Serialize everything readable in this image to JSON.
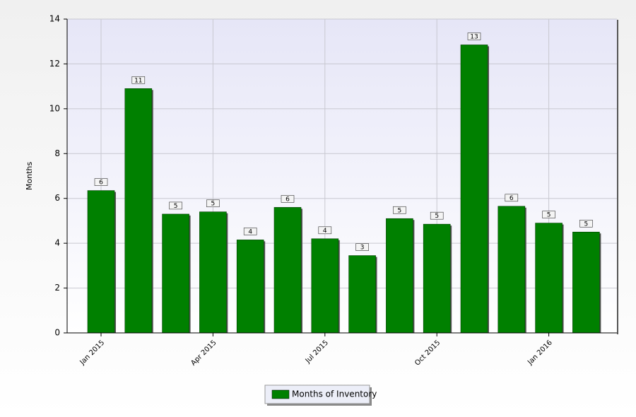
{
  "chart_data": {
    "type": "bar",
    "y_label": "Months",
    "categories": [
      "Jan 2015",
      null,
      null,
      "Apr 2015",
      null,
      null,
      "Jul 2015",
      null,
      null,
      "Oct 2015",
      null,
      null,
      "Jan 2016",
      null
    ],
    "series": [
      {
        "name": "Months of Inventory",
        "color": "#008000",
        "values": [
          6.35,
          10.9,
          5.3,
          5.4,
          4.15,
          5.6,
          4.2,
          3.45,
          5.1,
          4.85,
          12.85,
          5.65,
          4.9,
          4.5
        ],
        "value_labels": [
          "6",
          "11",
          "5",
          "5",
          "4",
          "6",
          "4",
          "3",
          "5",
          "5",
          "13",
          "6",
          "5",
          "5"
        ]
      }
    ],
    "ylim": [
      0,
      14
    ],
    "yticks": [
      0,
      2,
      4,
      6,
      8,
      10,
      12,
      14
    ],
    "grid": true
  }
}
